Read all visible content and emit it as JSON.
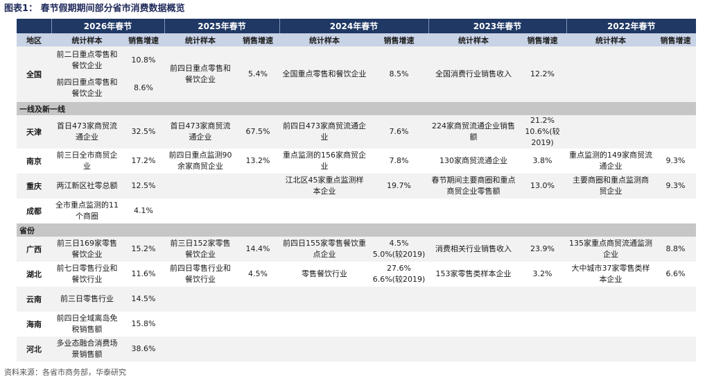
{
  "title": "图表1：  春节假期期间部分省市消费数据概览",
  "years": [
    "2026年春节",
    "2025年春节",
    "2024年春节",
    "2023年春节",
    "2022年春节"
  ],
  "col_headers": {
    "region": "地区",
    "sample": "统计样本",
    "growth": "销售增速"
  },
  "quanguo": {
    "region": "全国",
    "y2026_sample_1": "前二日重点零售和餐饮企业",
    "y2026_growth_1": "10.8%",
    "y2026_sample_2": "前四日重点零售和餐饮企业",
    "y2026_growth_2": "8.6%",
    "y2025_sample": "前四日重点零售和餐饮企业",
    "y2025_growth": "5.4%",
    "y2024_sample": "全国重点零售和餐饮企业",
    "y2024_growth": "8.5%",
    "y2023_sample": "全国消费行业销售收入",
    "y2023_growth": "12.2%",
    "y2022_sample": "",
    "y2022_growth": ""
  },
  "section_1": "一线及新一线",
  "section_2": "省份",
  "rows_1": [
    {
      "region": "天津",
      "s26": "首日473家商贸流通企业",
      "g26": "32.5%",
      "s25": "首日473家商贸流通企业",
      "g25": "67.5%",
      "s24": "前四日473家商贸流通企业",
      "g24": "7.6%",
      "s23": "224家商贸流通企业销售额",
      "g23": "21.2%\n10.6%(较2019)",
      "s22": "",
      "g22": ""
    },
    {
      "region": "南京",
      "s26": "前三日全市商贸企业",
      "g26": "17.2%",
      "s25": "前四日重点监测90余家商贸企业",
      "g25": "13.2%",
      "s24": "重点监测的156家商贸企业",
      "g24": "7.8%",
      "s23": "130家商贸流通企业",
      "g23": "3.8%",
      "s22": "重点监测的149家商贸流通企业",
      "g22": "9.3%"
    },
    {
      "region": "重庆",
      "s26": "两江新区社零总额",
      "g26": "12.5%",
      "s25": "",
      "g25": "",
      "s24": "江北区45家重点监测样本企业",
      "g24": "19.7%",
      "s23": "春节期间主要商圈和重点商贸企业零售额",
      "g23": "13.0%",
      "s22": "主要商圈和重点监测商贸企业",
      "g22": "9.3%"
    },
    {
      "region": "成都",
      "s26": "全市重点监测的11个商圈",
      "g26": "4.1%",
      "s25": "",
      "g25": "",
      "s24": "",
      "g24": "",
      "s23": "",
      "g23": "",
      "s22": "",
      "g22": ""
    }
  ],
  "rows_2": [
    {
      "region": "广西",
      "s26": "前三日169家零售餐饮企业",
      "g26": "15.2%",
      "s25": "前三日152家零售餐饮企业",
      "g25": "14.4%",
      "s24": "前四日155家零售餐饮重点企业",
      "g24": "4.5%\n5.0%(较2019)",
      "s23": "消费相关行业销售收入",
      "g23": "23.9%",
      "s22": "135家重点商贸流通监测企业",
      "g22": "8.8%"
    },
    {
      "region": "湖北",
      "s26": "前七日零售行业和餐饮行业",
      "g26": "11.6%",
      "s25": "前四日零售行业和餐饮行业",
      "g25": "4.5%",
      "s24": "零售餐饮行业",
      "g24": "27.6%\n6.6%(较2019)",
      "s23": "153家零售类样本企业",
      "g23": "3.2%",
      "s22": "大中城市37家零售类样本企业",
      "g22": "6.6%"
    },
    {
      "region": "云南",
      "s26": "前三日零售行业",
      "g26": "14.5%",
      "s25": "",
      "g25": "",
      "s24": "",
      "g24": "",
      "s23": "",
      "g23": "",
      "s22": "",
      "g22": ""
    },
    {
      "region": "海南",
      "s26": "前四日全域离岛免税销售额",
      "g26": "15.8%",
      "s25": "",
      "g25": "",
      "s24": "",
      "g24": "",
      "s23": "",
      "g23": "",
      "s22": "",
      "g22": ""
    },
    {
      "region": "河北",
      "s26": "多业态融合消费场景销售额",
      "g26": "38.6%",
      "s25": "",
      "g25": "",
      "s24": "",
      "g24": "",
      "s23": "",
      "g23": "",
      "s22": "",
      "g22": ""
    }
  ],
  "source": "资料来源：各省市商务部，华泰研究"
}
